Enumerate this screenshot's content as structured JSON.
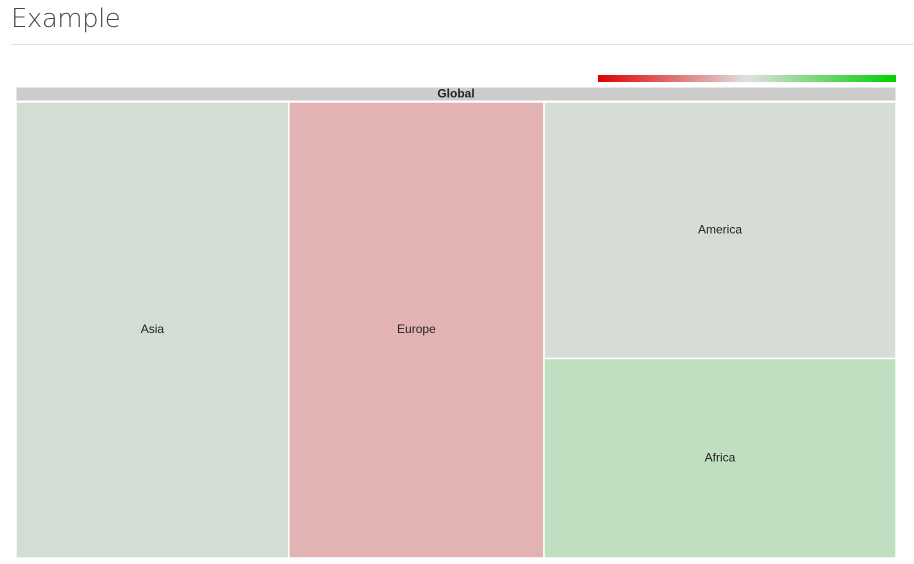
{
  "page_title": "Example",
  "chart_data": {
    "type": "treemap",
    "root": "Global",
    "categories": [
      "Asia",
      "Europe",
      "America",
      "Africa"
    ],
    "values": [
      31,
      29,
      22.5,
      17.5
    ],
    "colors": [
      "#d3ddd3",
      "#e3b3b3",
      "#d6ddd6",
      "#c0dec0"
    ],
    "header_color": "#cccccc",
    "color_scale": [
      "#e00000",
      "#e0e0e0",
      "#00d000"
    ]
  }
}
